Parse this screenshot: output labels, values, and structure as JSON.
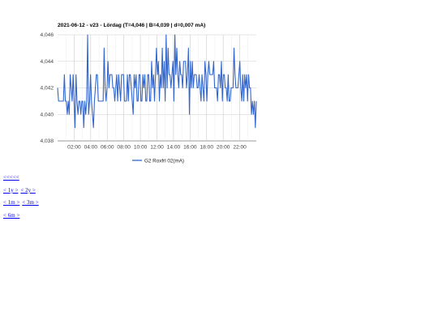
{
  "chart_data": {
    "type": "line",
    "title": "2021-06-12 - v23 - Lördag (T=4,046 | B=4,039 | d=0,007 mA)",
    "series": [
      {
        "name": "G2 Roxfrl 02(mA)",
        "color": "#3366cc",
        "x_range": [
          0,
          24
        ],
        "values": [
          4.042,
          4.041,
          4.041,
          4.041,
          4.041,
          4.041,
          4.041,
          4.043,
          4.041,
          4.041,
          4.04,
          4.041,
          4.04,
          4.043,
          4.042,
          4.041,
          4.043,
          4.041,
          4.039,
          4.043,
          4.041,
          4.04,
          4.041,
          4.041,
          4.04,
          4.041,
          4.041,
          4.039,
          4.041,
          4.04,
          4.041,
          4.046,
          4.04,
          4.041,
          4.043,
          4.041,
          4.04,
          4.039,
          4.041,
          4.042,
          4.043,
          4.043,
          4.041,
          4.041,
          4.041,
          4.041,
          4.041,
          4.041,
          4.045,
          4.042,
          4.041,
          4.042,
          4.044,
          4.042,
          4.043,
          4.043,
          4.043,
          4.042,
          4.042,
          4.041,
          4.042,
          4.043,
          4.041,
          4.043,
          4.042,
          4.041,
          4.043,
          4.043,
          4.043,
          4.041,
          4.041,
          4.041,
          4.043,
          4.041,
          4.043,
          4.043,
          4.042,
          4.041,
          4.04,
          4.043,
          4.042,
          4.043,
          4.041,
          4.041,
          4.043,
          4.043,
          4.041,
          4.041,
          4.043,
          4.042,
          4.043,
          4.041,
          4.041,
          4.043,
          4.043,
          4.041,
          4.041,
          4.044,
          4.042,
          4.043,
          4.041,
          4.043,
          4.045,
          4.043,
          4.044,
          4.041,
          4.043,
          4.042,
          4.045,
          4.042,
          4.044,
          4.041,
          4.046,
          4.042,
          4.045,
          4.043,
          4.043,
          4.042,
          4.043,
          4.044,
          4.041,
          4.046,
          4.043,
          4.045,
          4.043,
          4.042,
          4.044,
          4.043,
          4.043,
          4.042,
          4.044,
          4.044,
          4.044,
          4.042,
          4.043,
          4.045,
          4.04,
          4.044,
          4.042,
          4.044,
          4.042,
          4.043,
          4.043,
          4.043,
          4.042,
          4.042,
          4.043,
          4.042,
          4.041,
          4.043,
          4.042,
          4.041,
          4.044,
          4.043,
          4.041,
          4.043,
          4.044,
          4.043,
          4.043,
          4.043,
          4.043,
          4.044,
          4.042,
          4.042,
          4.042,
          4.041,
          4.043,
          4.043,
          4.042,
          4.044,
          4.041,
          4.043,
          4.043,
          4.042,
          4.042,
          4.041,
          4.043,
          4.041,
          4.041,
          4.042,
          4.042,
          4.042,
          4.045,
          4.043,
          4.042,
          4.042,
          4.042,
          4.043,
          4.044,
          4.042,
          4.041,
          4.043,
          4.041,
          4.043,
          4.042,
          4.043,
          4.041,
          4.043,
          4.042,
          4.042,
          4.04,
          4.041,
          4.04,
          4.041,
          4.039,
          4.041
        ]
      }
    ],
    "x_ticks": [
      "02:00",
      "04:00",
      "06:00",
      "08:00",
      "10:00",
      "12:00",
      "14:00",
      "16:00",
      "18:00",
      "20:00",
      "22:00"
    ],
    "y_ticks": [
      "4,038",
      "4,040",
      "4,042",
      "4,044",
      "4,046"
    ],
    "ylim": [
      4.038,
      4.046
    ],
    "grid": true,
    "legend_position": "bottom"
  },
  "nav": {
    "first": "<<<<<",
    "one_year": "< 1y >",
    "two_year": "< 2y >",
    "one_month": "< 1m >",
    "three_month": "< 3m >",
    "six_month": "< 6m >"
  }
}
